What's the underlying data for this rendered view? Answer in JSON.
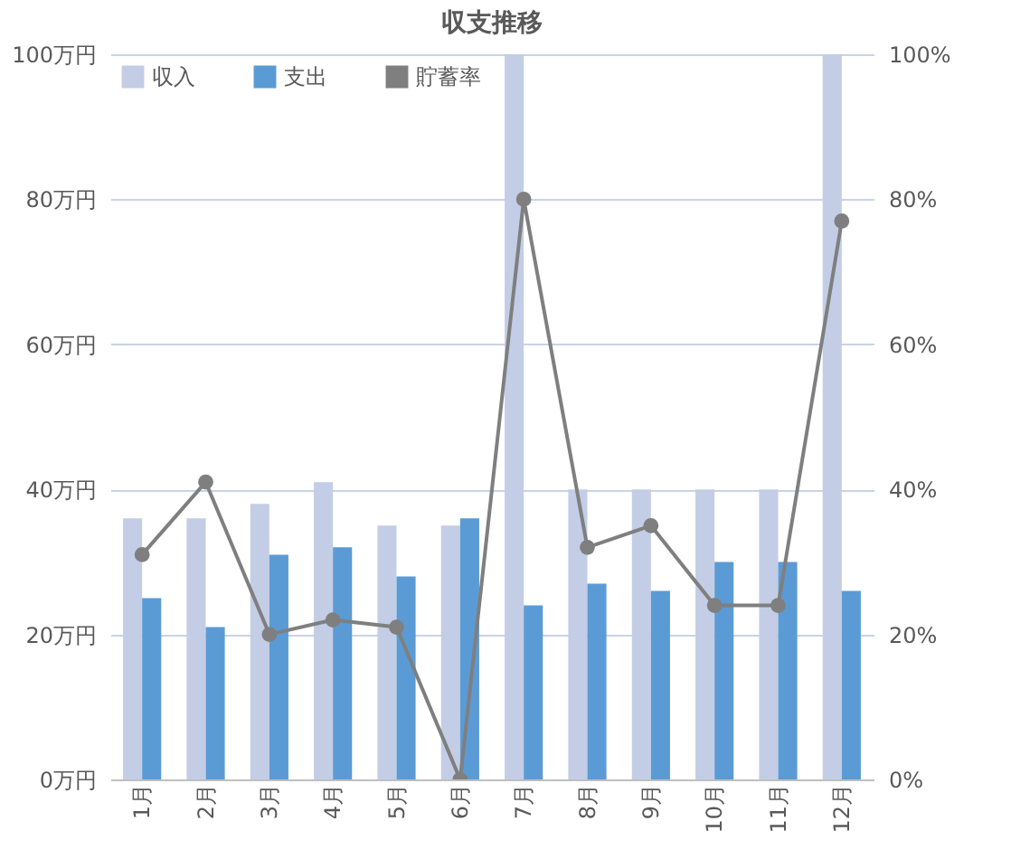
{
  "chart_data": {
    "type": "bar",
    "title": "収支推移",
    "categories": [
      "1月",
      "2月",
      "3月",
      "4月",
      "5月",
      "6月",
      "7月",
      "8月",
      "9月",
      "10月",
      "11月",
      "12月"
    ],
    "series": [
      {
        "name": "収入",
        "color": "#c3cde6",
        "values": [
          36,
          36,
          38,
          41,
          35,
          35,
          100,
          40,
          40,
          40,
          40,
          100
        ]
      },
      {
        "name": "支出",
        "color": "#5b9bd5",
        "values": [
          25,
          21,
          31,
          32,
          28,
          36,
          24,
          27,
          26,
          30,
          30,
          26
        ]
      },
      {
        "name": "貯蓄率",
        "type": "line",
        "axis": "y2",
        "color": "#7f7f7f",
        "values": [
          31,
          41,
          20,
          22,
          21,
          0,
          80,
          32,
          35,
          24,
          24,
          77
        ]
      }
    ],
    "ylim": [
      0,
      100
    ],
    "yticks": [
      {
        "value": 0,
        "label": "0万円"
      },
      {
        "value": 20,
        "label": "20万円"
      },
      {
        "value": 40,
        "label": "40万円"
      },
      {
        "value": 60,
        "label": "60万円"
      },
      {
        "value": 80,
        "label": "80万円"
      },
      {
        "value": 100,
        "label": "100万円"
      }
    ],
    "y2lim": [
      0,
      100
    ],
    "y2ticks": [
      {
        "value": 0,
        "label": "0%"
      },
      {
        "value": 20,
        "label": "20%"
      },
      {
        "value": 40,
        "label": "40%"
      },
      {
        "value": 60,
        "label": "60%"
      },
      {
        "value": 80,
        "label": "80%"
      },
      {
        "value": 100,
        "label": "100%"
      }
    ],
    "grid": "y",
    "legend": "top left",
    "marker": "circle",
    "line_style": "solid"
  }
}
